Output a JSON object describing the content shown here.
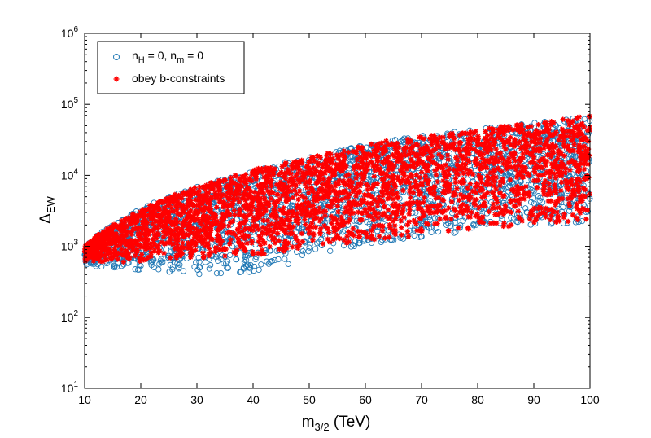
{
  "chart_data": {
    "type": "scatter",
    "xlabel_main": "m",
    "xlabel_sub": "3/2",
    "xlabel_rest": " (TeV)",
    "ylabel_main": "Δ",
    "ylabel_sub": "EW",
    "xlim": [
      10,
      100
    ],
    "ylim": [
      10,
      1000000
    ],
    "yscale": "log",
    "grid": false,
    "legend_position": "top-left",
    "x_ticks": [
      10,
      20,
      30,
      40,
      50,
      60,
      70,
      80,
      90,
      100
    ],
    "x_tick_labels": [
      "10",
      "20",
      "30",
      "40",
      "50",
      "60",
      "70",
      "80",
      "90",
      "100"
    ],
    "y_ticks": [
      {
        "value": 10,
        "base": "10",
        "exp": "1"
      },
      {
        "value": 100,
        "base": "10",
        "exp": "2"
      },
      {
        "value": 1000,
        "base": "10",
        "exp": "3"
      },
      {
        "value": 10000,
        "base": "10",
        "exp": "4"
      },
      {
        "value": 100000,
        "base": "10",
        "exp": "5"
      },
      {
        "value": 1000000,
        "base": "10",
        "exp": "6"
      }
    ],
    "series": [
      {
        "legend_main": "n",
        "legend_sub1": "H",
        "legend_mid": " = 0, n",
        "legend_sub2": "m",
        "legend_end": " = 0",
        "marker": "circle",
        "color": "#1f77b4",
        "band": {
          "x": [
            10,
            12,
            15,
            20,
            25,
            30,
            35,
            40,
            45,
            50,
            55,
            60,
            65,
            70,
            75,
            80,
            85,
            90,
            95,
            100
          ],
          "y_min": [
            550,
            520,
            500,
            460,
            420,
            400,
            400,
            420,
            500,
            700,
            900,
            1000,
            1200,
            1300,
            1500,
            1700,
            1800,
            1900,
            2000,
            2200
          ],
          "y_max": [
            1000,
            1400,
            2000,
            3500,
            5000,
            7000,
            9000,
            12000,
            15000,
            18000,
            22000,
            27000,
            32000,
            36000,
            40000,
            45000,
            50000,
            55000,
            62000,
            70000
          ]
        }
      },
      {
        "legend_label": "obey b-constraints",
        "marker": "asterisk",
        "color": "#ff0000",
        "band": {
          "x": [
            10,
            12,
            15,
            20,
            25,
            30,
            35,
            40,
            45,
            50,
            55,
            60,
            65,
            70,
            75,
            80,
            85,
            90,
            95,
            100
          ],
          "y_min": [
            600,
            600,
            600,
            600,
            650,
            650,
            700,
            750,
            800,
            900,
            1000,
            1100,
            1300,
            1400,
            1600,
            1800,
            1900,
            2000,
            2100,
            2300
          ],
          "y_max": [
            1000,
            1400,
            2000,
            3400,
            5000,
            7000,
            9000,
            12000,
            15000,
            18000,
            22000,
            27000,
            32000,
            36000,
            40000,
            45000,
            50000,
            55000,
            62000,
            70000
          ]
        }
      }
    ]
  }
}
